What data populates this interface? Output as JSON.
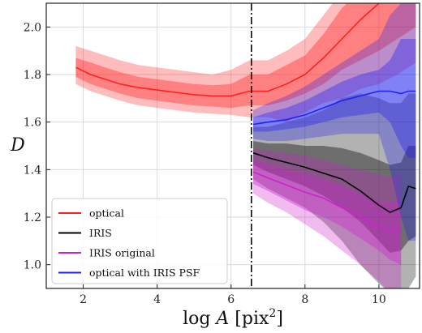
{
  "chart_data": {
    "type": "line",
    "title": "",
    "xlabel": "log A [pix²]",
    "ylabel": "D",
    "xlim": [
      1.0,
      11.1
    ],
    "ylim": [
      0.9,
      2.1
    ],
    "xticks": [
      "2",
      "4",
      "6",
      "8",
      "10"
    ],
    "xtick_values": [
      2,
      4,
      6,
      8,
      10
    ],
    "yticks": [
      "1.0",
      "1.2",
      "1.4",
      "1.6",
      "1.8",
      "2.0"
    ],
    "ytick_values": [
      1.0,
      1.2,
      1.4,
      1.6,
      1.8,
      2.0
    ],
    "grid": true,
    "legend_position": "lower-left",
    "vline": {
      "x": 6.55,
      "style": "dash-dot",
      "color": "#000000"
    },
    "series": [
      {
        "name": "optical",
        "color": "#ff2020",
        "x": [
          1.8,
          2.2,
          2.6,
          3.0,
          3.5,
          4.0,
          4.5,
          5.0,
          5.5,
          6.0,
          6.5,
          7.0,
          7.5,
          8.0,
          8.5,
          9.0,
          9.5,
          10.0,
          10.5,
          11.0
        ],
        "y": [
          1.83,
          1.8,
          1.78,
          1.76,
          1.745,
          1.735,
          1.725,
          1.715,
          1.71,
          1.71,
          1.73,
          1.73,
          1.76,
          1.8,
          1.87,
          1.95,
          2.03,
          2.1,
          2.15,
          2.2
        ],
        "band1_lower": [
          1.79,
          1.76,
          1.74,
          1.72,
          1.7,
          1.69,
          1.68,
          1.67,
          1.665,
          1.66,
          1.67,
          1.67,
          1.69,
          1.72,
          1.76,
          1.82,
          1.86,
          1.9,
          1.95,
          2.0
        ],
        "band1_upper": [
          1.87,
          1.85,
          1.83,
          1.81,
          1.79,
          1.78,
          1.77,
          1.76,
          1.755,
          1.76,
          1.8,
          1.8,
          1.84,
          1.88,
          1.97,
          2.08,
          2.15,
          2.2,
          2.25,
          2.3
        ],
        "band2_lower": [
          1.76,
          1.73,
          1.71,
          1.69,
          1.67,
          1.66,
          1.65,
          1.64,
          1.635,
          1.63,
          1.62,
          1.62,
          1.6,
          1.64,
          1.68,
          1.7,
          1.74,
          1.76,
          1.8,
          1.85
        ],
        "band2_upper": [
          1.92,
          1.9,
          1.88,
          1.86,
          1.84,
          1.83,
          1.82,
          1.81,
          1.8,
          1.82,
          1.86,
          1.86,
          1.9,
          1.95,
          2.05,
          2.15,
          2.2,
          2.25,
          2.3,
          2.35
        ]
      },
      {
        "name": "IRIS",
        "color": "#000000",
        "x": [
          6.6,
          7.0,
          7.5,
          8.0,
          8.5,
          9.0,
          9.5,
          10.0,
          10.3,
          10.6,
          10.8,
          11.0
        ],
        "y": [
          1.47,
          1.45,
          1.43,
          1.41,
          1.385,
          1.36,
          1.31,
          1.25,
          1.22,
          1.24,
          1.33,
          1.32
        ],
        "band1_lower": [
          1.42,
          1.39,
          1.36,
          1.33,
          1.29,
          1.24,
          1.18,
          1.1,
          1.05,
          1.06,
          1.1,
          1.12
        ],
        "band1_upper": [
          1.52,
          1.51,
          1.51,
          1.5,
          1.5,
          1.49,
          1.47,
          1.44,
          1.42,
          1.43,
          1.5,
          1.5
        ],
        "band2_lower": [
          1.36,
          1.32,
          1.28,
          1.24,
          1.18,
          1.1,
          1.0,
          0.92,
          0.88,
          0.88,
          0.9,
          0.95
        ],
        "band2_upper": [
          1.58,
          1.58,
          1.6,
          1.62,
          1.65,
          1.7,
          1.72,
          1.7,
          1.68,
          1.68,
          1.72,
          1.72
        ]
      },
      {
        "name": "IRIS original",
        "color": "#cc22cc",
        "x": [
          6.6,
          7.0,
          7.5,
          8.0,
          8.5,
          9.0,
          9.5,
          10.0,
          10.3,
          10.6
        ],
        "y": [
          1.39,
          1.365,
          1.335,
          1.305,
          1.28,
          1.24,
          1.2,
          1.16,
          1.14,
          1.15
        ],
        "band1_lower": [
          1.34,
          1.31,
          1.27,
          1.23,
          1.2,
          1.16,
          1.11,
          1.06,
          1.02,
          1.0
        ],
        "band1_upper": [
          1.44,
          1.42,
          1.4,
          1.38,
          1.36,
          1.33,
          1.3,
          1.27,
          1.26,
          1.27
        ],
        "band2_lower": [
          1.3,
          1.26,
          1.22,
          1.17,
          1.12,
          1.06,
          1.0,
          0.93,
          0.88,
          0.86
        ],
        "band2_upper": [
          1.49,
          1.48,
          1.47,
          1.46,
          1.44,
          1.42,
          1.4,
          1.38,
          1.37,
          1.38
        ]
      },
      {
        "name": "optical with IRIS PSF",
        "color": "#2222ee",
        "x": [
          6.6,
          7.0,
          7.5,
          8.0,
          8.5,
          9.0,
          9.5,
          10.0,
          10.3,
          10.6,
          10.8,
          11.0
        ],
        "y": [
          1.59,
          1.6,
          1.61,
          1.63,
          1.66,
          1.69,
          1.71,
          1.73,
          1.73,
          1.72,
          1.73,
          1.73
        ],
        "band1_lower": [
          1.56,
          1.56,
          1.57,
          1.58,
          1.6,
          1.62,
          1.63,
          1.64,
          1.6,
          1.5,
          1.45,
          1.45
        ],
        "band1_upper": [
          1.62,
          1.64,
          1.66,
          1.69,
          1.73,
          1.77,
          1.8,
          1.82,
          1.86,
          1.95,
          1.95,
          1.95
        ],
        "band2_lower": [
          1.53,
          1.52,
          1.52,
          1.53,
          1.54,
          1.55,
          1.55,
          1.55,
          1.4,
          1.2,
          1.1,
          1.1
        ],
        "band2_upper": [
          1.65,
          1.68,
          1.71,
          1.75,
          1.8,
          1.85,
          1.9,
          1.95,
          2.05,
          2.1,
          2.1,
          2.1
        ]
      }
    ]
  }
}
